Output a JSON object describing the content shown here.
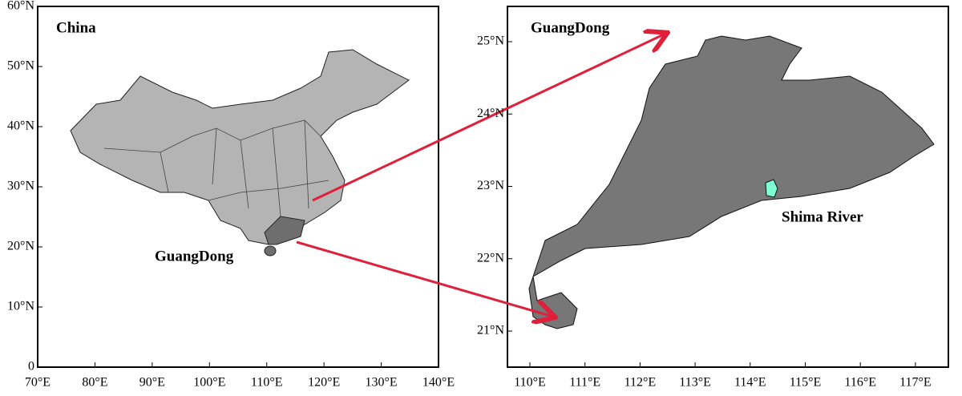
{
  "left_map": {
    "label": "China",
    "region_label": "GuangDong",
    "x_ticks": [
      "70°E",
      "80°E",
      "90°E",
      "100°E",
      "110°E",
      "120°E",
      "130°E",
      "140°E"
    ],
    "y_ticks": [
      "60°N",
      "50°N",
      "40°N",
      "30°N",
      "20°N",
      "10°N",
      "0"
    ]
  },
  "right_map": {
    "label": "GuangDong",
    "river_label": "Shima River",
    "x_ticks": [
      "110°E",
      "111°E",
      "112°E",
      "113°E",
      "114°E",
      "115°E",
      "116°E",
      "117°E"
    ],
    "y_ticks": [
      "25°N",
      "24°N",
      "23°N",
      "22°N",
      "21°N"
    ]
  }
}
